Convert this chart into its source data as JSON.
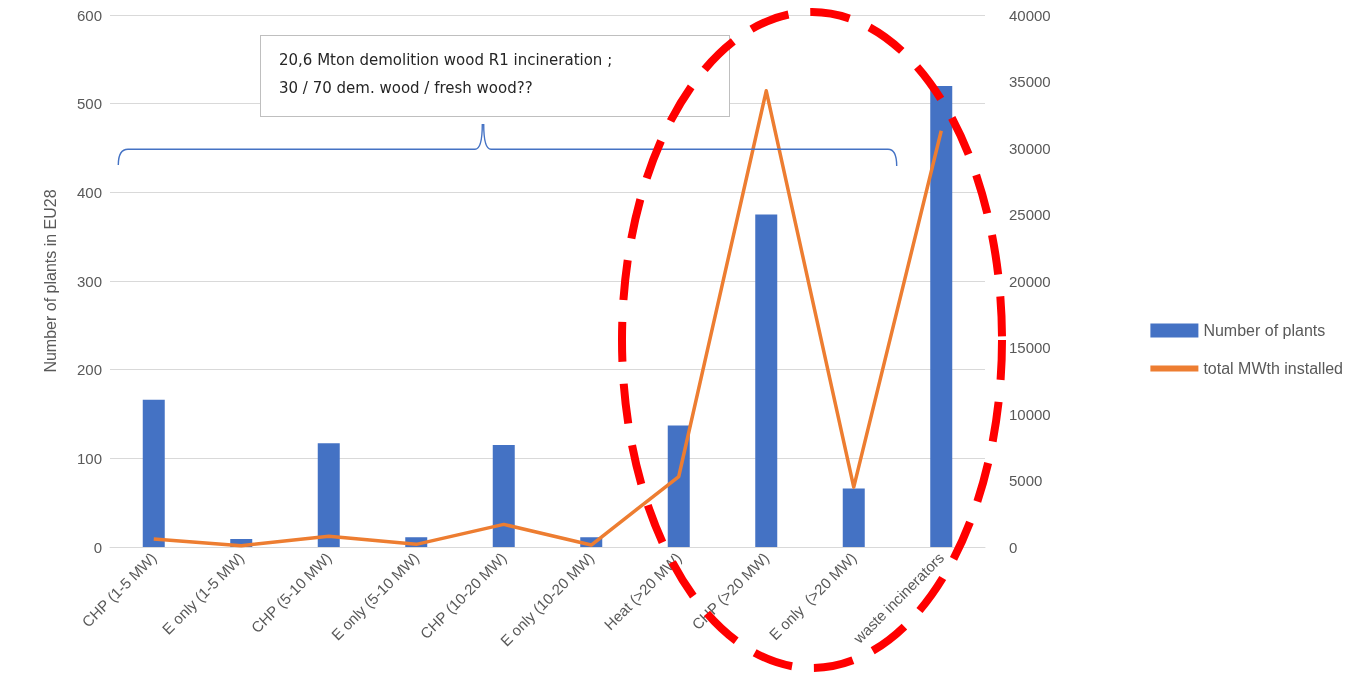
{
  "chart_data": {
    "type": "bar",
    "ylabel": "Number of plants in EU28",
    "categories": [
      "CHP (1-5 MW)",
      "E only (1-5 MW)",
      "CHP (5-10 MW)",
      "E only (5-10 MW)",
      "CHP (10-20 MW)",
      "E only (10-20 MW)",
      "Heat (>20 MW)",
      "CHP (>20 MW)",
      "E only  (>20 MW)",
      "waste incinerators"
    ],
    "series": [
      {
        "name": "Number of plants",
        "color": "#4472c4",
        "values": [
          166,
          9,
          117,
          11,
          115,
          11,
          137,
          375,
          66,
          520
        ]
      },
      {
        "name": "total MWth installed",
        "type": "line",
        "axis": "y2",
        "color": "#ed7d31",
        "values": [
          600,
          100,
          800,
          200,
          1700,
          150,
          5300,
          34300,
          4500,
          31300
        ]
      }
    ],
    "ylim": [
      0,
      600
    ],
    "yticks": [
      0,
      100,
      200,
      300,
      400,
      500,
      600
    ],
    "y2lim": [
      0,
      40000
    ],
    "y2ticks": [
      0,
      5000,
      10000,
      15000,
      20000,
      25000,
      30000,
      35000,
      40000
    ],
    "grid": "y",
    "legend": "right",
    "marker": "none",
    "annotations": [
      "20,6 Mton demolition wood R1 incineration ;\n30 / 70 dem. wood / fresh wood??"
    ]
  }
}
